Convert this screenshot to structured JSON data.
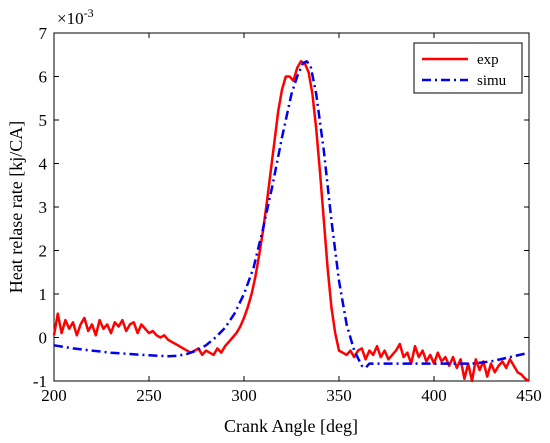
{
  "chart_data": {
    "type": "line",
    "title": "",
    "xlabel": "Crank Angle [deg]",
    "ylabel": "Heat relase rate [kj/CA]",
    "y_exponent_base": "×10",
    "y_exponent_power": "-3",
    "xlim": [
      200,
      450
    ],
    "ylim": [
      -1,
      7
    ],
    "xticks": [
      200,
      250,
      300,
      350,
      400,
      450
    ],
    "yticks": [
      -1,
      0,
      1,
      2,
      3,
      4,
      5,
      6,
      7
    ],
    "grid": false,
    "legend_position": "top-right",
    "series": [
      {
        "name": "exp",
        "color": "#ff0000",
        "style": "solid",
        "x": [
          200,
          202,
          204,
          206,
          208,
          210,
          212,
          214,
          216,
          218,
          220,
          222,
          224,
          226,
          228,
          230,
          232,
          234,
          236,
          238,
          240,
          242,
          244,
          246,
          248,
          250,
          252,
          254,
          256,
          258,
          260,
          262,
          264,
          266,
          268,
          270,
          272,
          274,
          276,
          278,
          280,
          282,
          284,
          286,
          288,
          290,
          292,
          294,
          296,
          298,
          300,
          302,
          304,
          306,
          308,
          310,
          312,
          314,
          316,
          318,
          320,
          322,
          324,
          326,
          328,
          330,
          332,
          334,
          336,
          338,
          340,
          342,
          344,
          346,
          348,
          350,
          352,
          354,
          356,
          358,
          360,
          362,
          364,
          366,
          368,
          370,
          372,
          374,
          376,
          378,
          380,
          382,
          384,
          386,
          388,
          390,
          392,
          394,
          396,
          398,
          400,
          402,
          404,
          406,
          408,
          410,
          412,
          414,
          416,
          418,
          420,
          422,
          424,
          426,
          428,
          430,
          432,
          434,
          436,
          438,
          440,
          442,
          444,
          446,
          448,
          450
        ],
        "values": [
          0.05,
          0.55,
          0.1,
          0.4,
          0.2,
          0.35,
          0.05,
          0.3,
          0.45,
          0.15,
          0.3,
          0.05,
          0.4,
          0.2,
          0.3,
          0.1,
          0.35,
          0.25,
          0.4,
          0.15,
          0.3,
          0.35,
          0.1,
          0.3,
          0.2,
          0.1,
          0.15,
          0.05,
          0.0,
          0.05,
          -0.05,
          -0.1,
          -0.15,
          -0.2,
          -0.25,
          -0.3,
          -0.35,
          -0.3,
          -0.25,
          -0.4,
          -0.3,
          -0.35,
          -0.4,
          -0.25,
          -0.35,
          -0.2,
          -0.1,
          0.0,
          0.1,
          0.25,
          0.45,
          0.7,
          1.0,
          1.4,
          1.9,
          2.45,
          3.1,
          3.8,
          4.5,
          5.2,
          5.7,
          6.0,
          6.0,
          5.9,
          6.2,
          6.35,
          6.3,
          6.1,
          5.6,
          4.8,
          3.8,
          2.7,
          1.6,
          0.7,
          0.1,
          -0.3,
          -0.35,
          -0.4,
          -0.3,
          -0.45,
          -0.3,
          -0.25,
          -0.5,
          -0.3,
          -0.4,
          -0.2,
          -0.45,
          -0.3,
          -0.5,
          -0.4,
          -0.3,
          -0.15,
          -0.45,
          -0.35,
          -0.6,
          -0.2,
          -0.45,
          -0.3,
          -0.55,
          -0.4,
          -0.6,
          -0.35,
          -0.55,
          -0.45,
          -0.65,
          -0.45,
          -0.7,
          -0.5,
          -0.95,
          -0.6,
          -1.0,
          -0.5,
          -0.75,
          -0.55,
          -0.9,
          -0.6,
          -0.8,
          -0.65,
          -0.55,
          -0.7,
          -0.5,
          -0.65,
          -0.8,
          -0.85,
          -0.95,
          -1.0
        ]
      },
      {
        "name": "simu",
        "color": "#0000ee",
        "style": "dashdot",
        "x": [
          200,
          210,
          220,
          230,
          240,
          250,
          260,
          265,
          270,
          275,
          280,
          285,
          290,
          295,
          300,
          305,
          310,
          315,
          320,
          325,
          328,
          331,
          333,
          335,
          338,
          342,
          346,
          350,
          354,
          358,
          362,
          364,
          366,
          370,
          380,
          390,
          400,
          410,
          420,
          430,
          440,
          450
        ],
        "values": [
          -0.18,
          -0.25,
          -0.3,
          -0.35,
          -0.38,
          -0.41,
          -0.43,
          -0.42,
          -0.38,
          -0.3,
          -0.18,
          0.0,
          0.22,
          0.55,
          1.0,
          1.6,
          2.5,
          3.5,
          4.6,
          5.6,
          6.0,
          6.3,
          6.35,
          6.25,
          5.6,
          4.3,
          2.7,
          1.3,
          0.3,
          -0.3,
          -0.65,
          -0.7,
          -0.6,
          -0.6,
          -0.6,
          -0.6,
          -0.6,
          -0.6,
          -0.6,
          -0.55,
          -0.45,
          -0.35
        ]
      }
    ]
  }
}
